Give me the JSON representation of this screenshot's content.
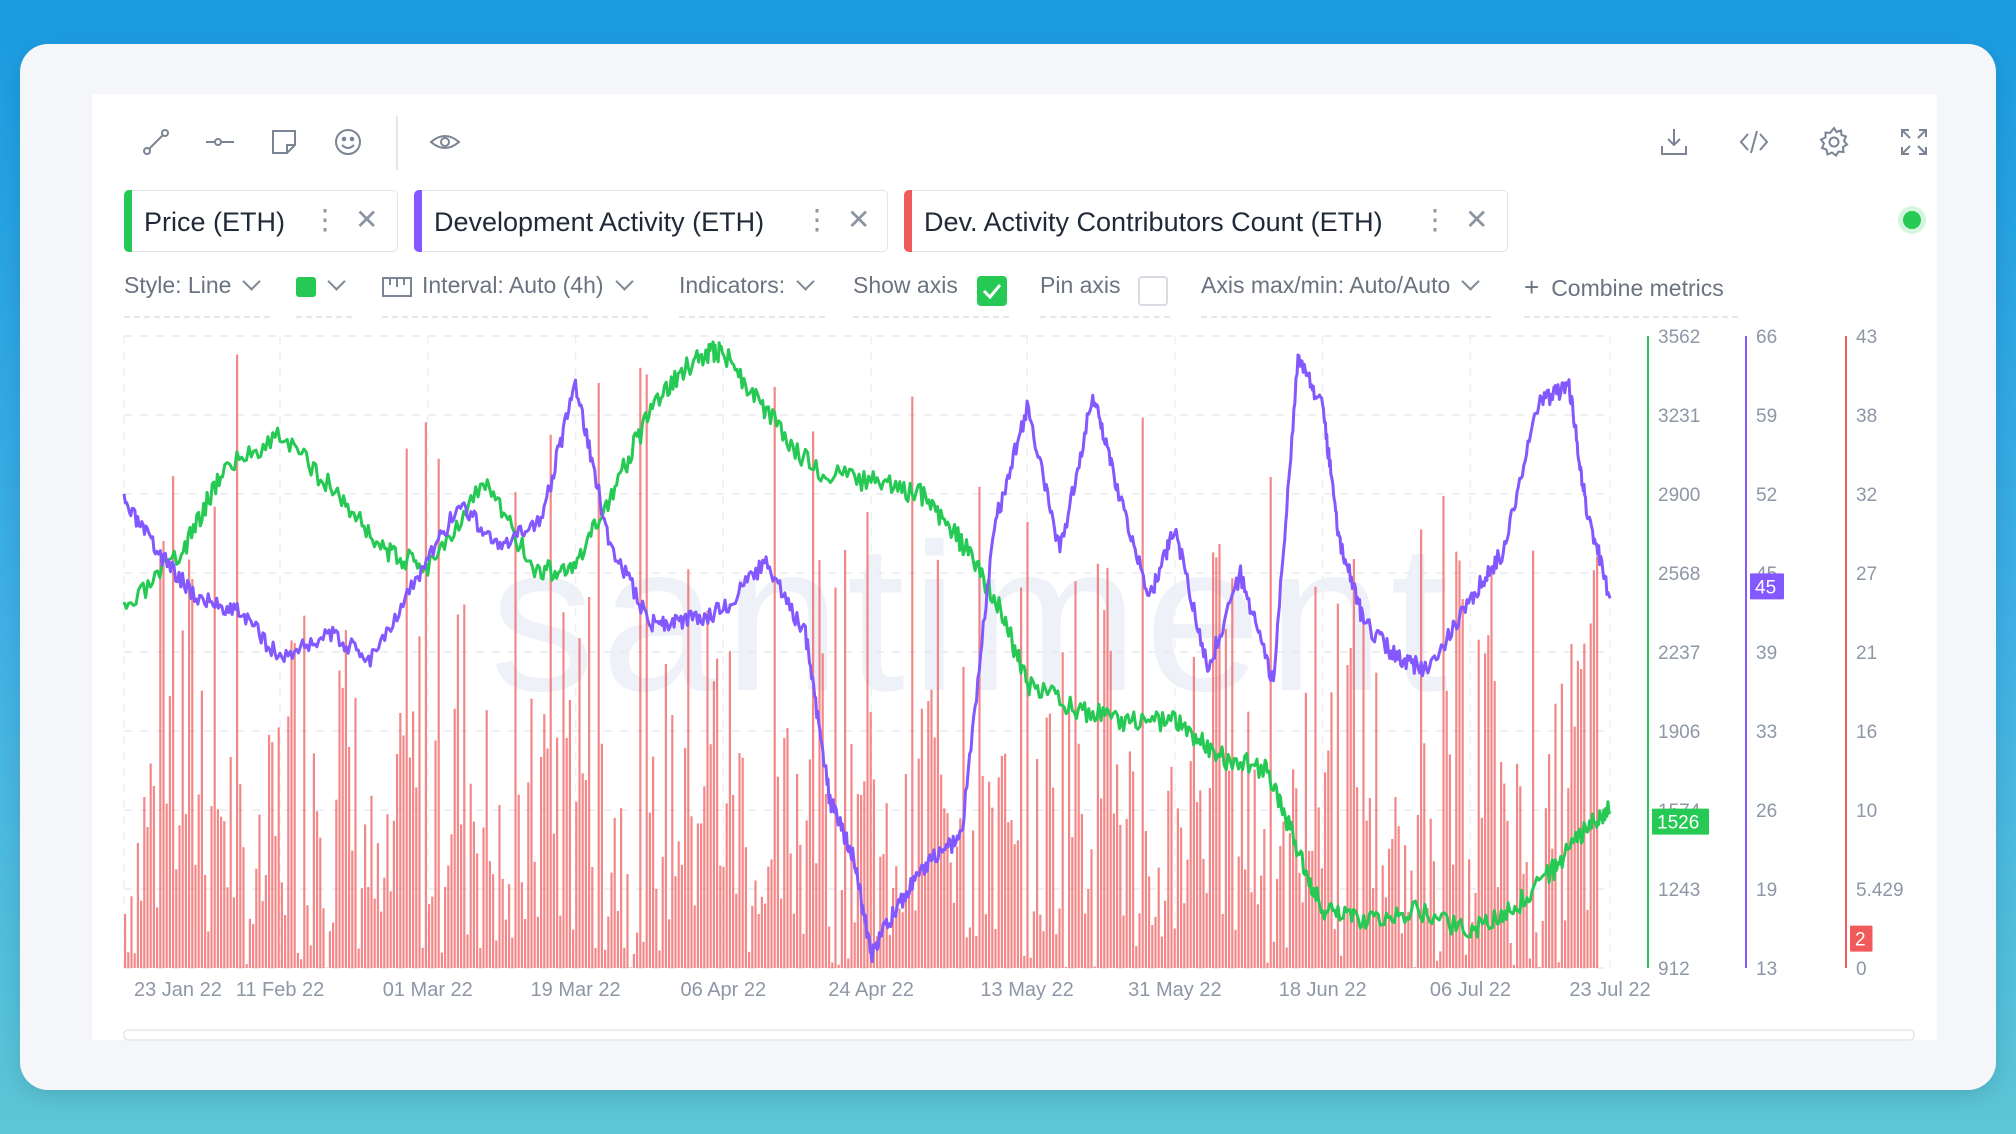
{
  "toolbar": {
    "left_icons": [
      "line-draw-icon",
      "horizontal-ray-icon",
      "sticky-note-icon",
      "emoji-icon",
      "eye-icon"
    ],
    "right_icons": [
      "download-icon",
      "embed-code-icon",
      "settings-gear-icon",
      "fullscreen-icon"
    ]
  },
  "metrics": [
    {
      "label": "Price (ETH)",
      "color": "#26c953"
    },
    {
      "label": "Development Activity (ETH)",
      "color": "#8358ff"
    },
    {
      "label": "Dev. Activity Contributors Count (ETH)",
      "color": "#f05a5a"
    }
  ],
  "settings": {
    "style_label": "Style: Line",
    "line_color": "#26c953",
    "interval_label": "Interval: Auto (4h)",
    "indicators_label": "Indicators:",
    "show_axis_label": "Show axis",
    "show_axis_checked": true,
    "pin_axis_label": "Pin axis",
    "pin_axis_checked": false,
    "axis_maxmin_label": "Axis max/min: Auto/Auto",
    "combine_label": "Combine metrics"
  },
  "chart_data": {
    "type": "line",
    "watermark": "santiment",
    "x_ticks": [
      "23 Jan 22",
      "11 Feb 22",
      "01 Mar 22",
      "19 Mar 22",
      "06 Apr 22",
      "24 Apr 22",
      "13 May 22",
      "31 May 22",
      "18 Jun 22",
      "06 Jul 22",
      "23 Jul 22"
    ],
    "axes": [
      {
        "name": "Price (ETH)",
        "ticks": [
          "3562",
          "3231",
          "2900",
          "2568",
          "2237",
          "1906",
          "1574",
          "1243",
          "912"
        ],
        "ylim": [
          912,
          3562
        ],
        "current_badge": "1526",
        "color": "#26c953"
      },
      {
        "name": "Development Activity (ETH)",
        "ticks": [
          "66",
          "59",
          "52",
          "45",
          "39",
          "33",
          "26",
          "19",
          "13"
        ],
        "ylim": [
          13,
          66
        ],
        "current_badge": "45",
        "color": "#8358ff"
      },
      {
        "name": "Dev. Activity Contributors Count (ETH)",
        "ticks": [
          "43",
          "38",
          "32",
          "27",
          "21",
          "16",
          "10",
          "5.429",
          "0"
        ],
        "ylim": [
          0,
          43
        ],
        "current_badge": "2",
        "color": "#f05a5a"
      }
    ],
    "series": [
      {
        "name": "Price (ETH)",
        "color": "#26c953",
        "x": [
          "23 Jan 22",
          "30 Jan 22",
          "04 Feb 22",
          "11 Feb 22",
          "18 Feb 22",
          "24 Feb 22",
          "01 Mar 22",
          "08 Mar 22",
          "14 Mar 22",
          "19 Mar 22",
          "24 Mar 22",
          "29 Mar 22",
          "03 Apr 22",
          "06 Apr 22",
          "11 Apr 22",
          "17 Apr 22",
          "24 Apr 22",
          "30 Apr 22",
          "05 May 22",
          "10 May 22",
          "13 May 22",
          "19 May 22",
          "25 May 22",
          "31 May 22",
          "05 Jun 22",
          "11 Jun 22",
          "14 Jun 22",
          "18 Jun 22",
          "23 Jun 22",
          "29 Jun 22",
          "06 Jul 22",
          "11 Jul 22",
          "16 Jul 22",
          "20 Jul 22",
          "23 Jul 22"
        ],
        "y": [
          2400,
          2650,
          3000,
          3150,
          2900,
          2650,
          2600,
          2950,
          2580,
          2580,
          2950,
          3300,
          3480,
          3500,
          3250,
          3000,
          2950,
          2900,
          2700,
          2400,
          2100,
          2000,
          1950,
          1950,
          1800,
          1750,
          1500,
          1150,
          1100,
          1150,
          1070,
          1150,
          1320,
          1500,
          1570
        ]
      },
      {
        "name": "Development Activity (ETH)",
        "color": "#8358ff",
        "x": [
          "23 Jan 22",
          "27 Jan 22",
          "01 Feb 22",
          "06 Feb 22",
          "11 Feb 22",
          "17 Feb 22",
          "22 Feb 22",
          "28 Feb 22",
          "05 Mar 22",
          "10 Mar 22",
          "15 Mar 22",
          "19 Mar 22",
          "23 Mar 22",
          "28 Mar 22",
          "01 Apr 22",
          "06 Apr 22",
          "11 Apr 22",
          "16 Apr 22",
          "19 Apr 22",
          "22 Apr 22",
          "24 Apr 22",
          "27 Apr 22",
          "01 May 22",
          "05 May 22",
          "09 May 22",
          "13 May 22",
          "17 May 22",
          "21 May 22",
          "24 May 22",
          "28 May 22",
          "31 May 22",
          "04 Jun 22",
          "08 Jun 22",
          "12 Jun 22",
          "15 Jun 22",
          "18 Jun 22",
          "20 Jun 22",
          "23 Jun 22",
          "27 Jun 22",
          "01 Jul 22",
          "06 Jul 22",
          "10 Jul 22",
          "14 Jul 22",
          "18 Jul 22",
          "20 Jul 22",
          "23 Jul 22"
        ],
        "y": [
          52,
          48,
          44,
          43,
          39,
          41,
          39,
          46,
          52,
          48,
          51,
          62,
          49,
          42,
          42,
          43,
          47,
          41,
          27,
          22,
          14,
          18,
          22,
          24,
          50,
          60,
          48,
          61,
          53,
          44,
          50,
          38,
          46,
          37,
          64,
          60,
          49,
          42,
          39,
          38,
          44,
          48,
          60,
          62,
          52,
          44
        ]
      },
      {
        "name": "Dev. Activity Contributors Count (ETH)",
        "color": "#f05a5a",
        "type": "bar",
        "y_range": [
          0,
          43
        ],
        "typical_peak": 30
      }
    ]
  }
}
